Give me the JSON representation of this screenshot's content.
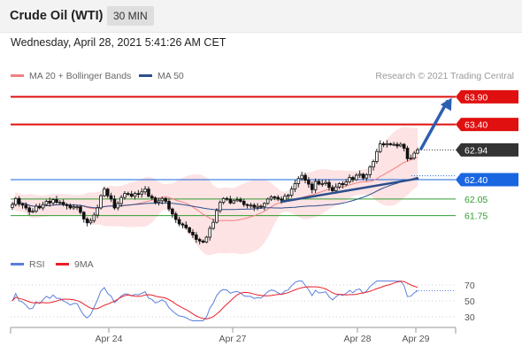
{
  "header": {
    "title": "Crude Oil (WTI)",
    "timeframe": "30 MIN",
    "datetime": "Wednesday, April 28, 2021 5:41:26 AM CET"
  },
  "legend_main": {
    "items": [
      {
        "label": "MA 20 + Bollinger Bands",
        "color": "#f08080"
      },
      {
        "label": "MA 50",
        "color": "#2c4f8c"
      }
    ],
    "credit": "Research © 2021 Trading Central"
  },
  "legend_rsi": {
    "items": [
      {
        "label": "RSI",
        "color": "#5b7fdc"
      },
      {
        "label": "9MA",
        "color": "#e8202a"
      }
    ]
  },
  "chart_data": [
    {
      "type": "candlestick",
      "title": "Crude Oil (WTI)",
      "timeframe": "30 MIN",
      "x_tick_labels": [
        "Apr 24",
        "Apr 27",
        "Apr 28",
        "Apr 29"
      ],
      "ylim": [
        61.2,
        64.05
      ],
      "levels": [
        {
          "value": 63.9,
          "label": "63.90",
          "kind": "resistance",
          "color": "#e01010"
        },
        {
          "value": 63.4,
          "label": "63.40",
          "kind": "resistance",
          "color": "#e01010"
        },
        {
          "value": 62.94,
          "label": "62.94",
          "kind": "last_price",
          "color": "#333333"
        },
        {
          "value": 62.4,
          "label": "62.40",
          "kind": "pivot",
          "color": "#1a66e0"
        },
        {
          "value": 62.05,
          "label": "62.05",
          "kind": "support",
          "color": "#2e9e2e"
        },
        {
          "value": 61.75,
          "label": "61.75",
          "kind": "support",
          "color": "#2e9e2e"
        }
      ],
      "candles": {
        "count": 120,
        "close": [
          61.95,
          62.06,
          61.96,
          61.94,
          61.89,
          61.82,
          61.83,
          61.92,
          61.89,
          61.95,
          62.01,
          61.98,
          62.04,
          61.99,
          61.99,
          61.95,
          61.93,
          61.89,
          61.91,
          61.91,
          61.81,
          61.69,
          61.62,
          61.66,
          61.76,
          61.89,
          62.11,
          62.23,
          62.11,
          62.05,
          61.89,
          61.97,
          62.08,
          62.15,
          62.14,
          62.1,
          62.15,
          62.14,
          62.18,
          62.23,
          62.1,
          62.07,
          61.99,
          62.02,
          62.06,
          62.01,
          61.87,
          61.78,
          61.68,
          61.6,
          61.58,
          61.53,
          61.45,
          61.4,
          61.32,
          61.29,
          61.27,
          61.36,
          61.52,
          61.63,
          61.84,
          61.99,
          62.06,
          62.05,
          61.98,
          62.02,
          62.04,
          62.01,
          61.95,
          61.94,
          61.94,
          61.9,
          61.92,
          61.91,
          61.97,
          62.05,
          62.09,
          62.08,
          62.05,
          62.03,
          62.1,
          62.12,
          62.23,
          62.33,
          62.42,
          62.48,
          62.39,
          62.32,
          62.22,
          62.37,
          62.32,
          62.33,
          62.35,
          62.26,
          62.2,
          62.27,
          62.33,
          62.31,
          62.36,
          62.44,
          62.4,
          62.48,
          62.5,
          62.43,
          62.49,
          62.63,
          62.73,
          62.91,
          63.05,
          63.03,
          63.05,
          63.04,
          63.04,
          63.01,
          63.04,
          62.97,
          62.78,
          62.79,
          62.88,
          62.94
        ],
        "note": "approximate closes, 30-min candles read off the chart"
      },
      "overlays": [
        "MA 20 + Bollinger Bands",
        "MA 50"
      ],
      "trendlines": [
        {
          "from_candle": 79,
          "from_value": 62.0,
          "to_candle": 119,
          "to_value": 62.42,
          "color": "#2c4f8c"
        },
        {
          "from_candle": 120,
          "from_value": 62.96,
          "to_candle": 129,
          "to_value": 63.88,
          "color": "#2c5fb0",
          "arrow": true
        }
      ]
    },
    {
      "type": "line",
      "title": "RSI",
      "series": [
        {
          "name": "RSI",
          "color": "#5b7fdc"
        },
        {
          "name": "9MA",
          "color": "#e8202a"
        }
      ],
      "y_tick_labels": [
        "70",
        "50",
        "30"
      ],
      "ylim": [
        20,
        80
      ],
      "guide_levels": [
        70,
        50,
        30
      ]
    }
  ]
}
